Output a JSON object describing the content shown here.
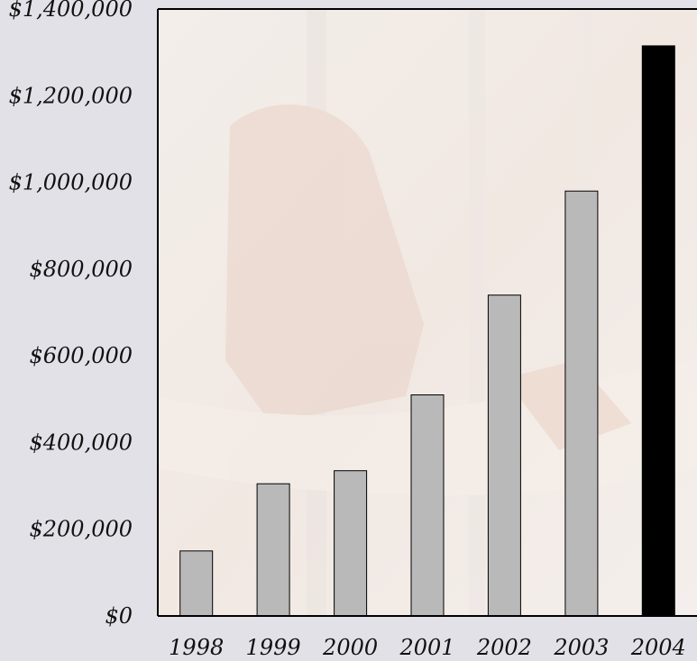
{
  "colors": {
    "page_background": "#e3e1e8",
    "plot_background": "#f4eeea",
    "bar_default": "#b9b9b9",
    "bar_highlight": "#000000",
    "axis": "#000000"
  },
  "chart_data": {
    "type": "bar",
    "title": "",
    "xlabel": "",
    "ylabel": "",
    "categories": [
      "1998",
      "1999",
      "2000",
      "2001",
      "2002",
      "2003",
      "2004"
    ],
    "values": [
      150000,
      305000,
      335000,
      510000,
      740000,
      980000,
      1315000
    ],
    "highlight_category": "2004",
    "ylim": [
      0,
      1400000
    ],
    "yticks": [
      0,
      200000,
      400000,
      600000,
      800000,
      1000000,
      1200000,
      1400000
    ],
    "ytick_labels": [
      "$0",
      "$200,000",
      "$400,000",
      "$600,000",
      "$800,000",
      "$1,000,000",
      "$1,200,000",
      "$1,400,000"
    ],
    "grid": false,
    "legend": "none",
    "background": "faded photograph of hands gripping bars"
  }
}
